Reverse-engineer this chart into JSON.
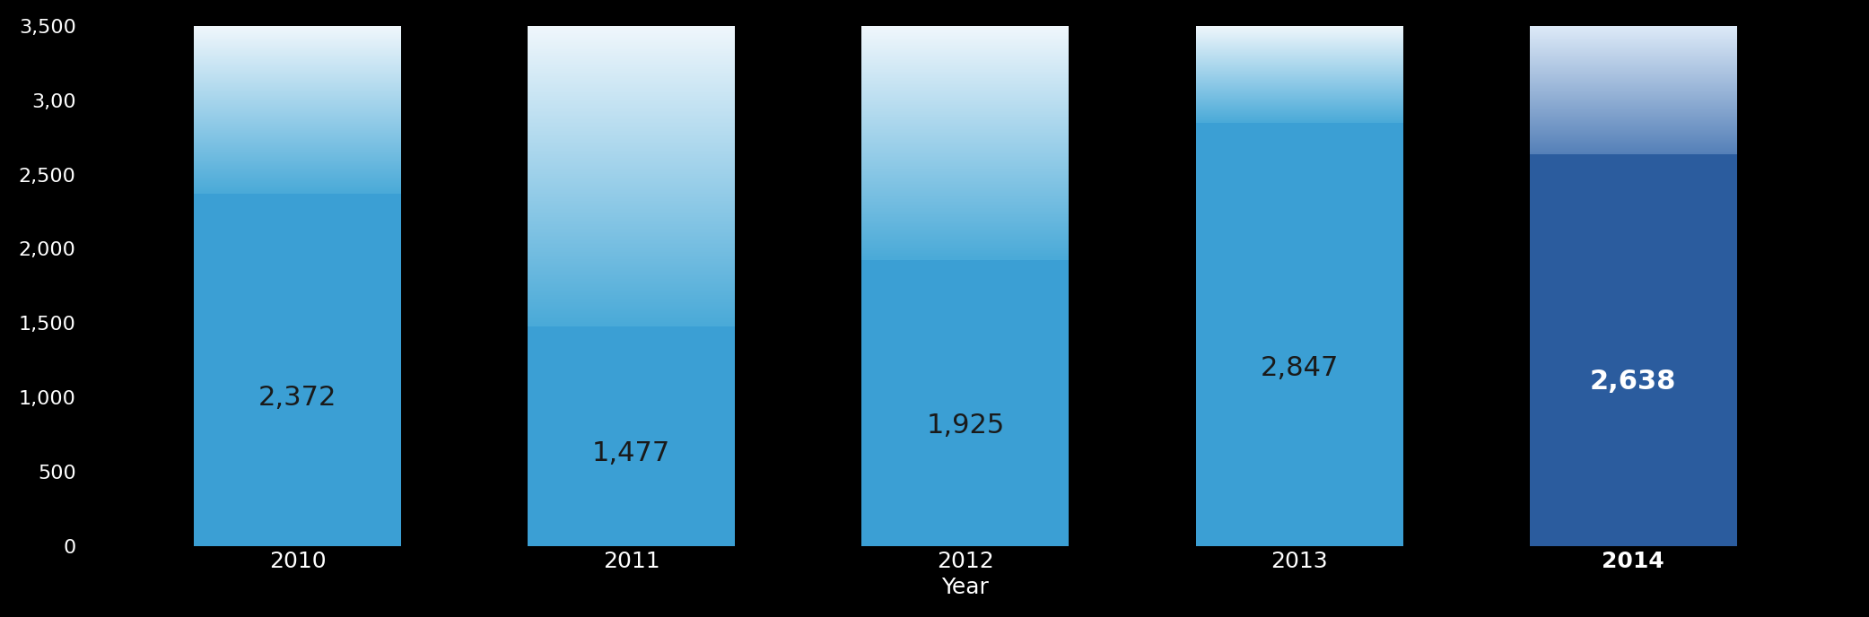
{
  "years": [
    "2010",
    "2011",
    "2012",
    "2013",
    "2014"
  ],
  "values": [
    2372,
    1477,
    1925,
    2847,
    2638
  ],
  "total": 3500,
  "bar_colors_bottom": [
    "#3b9fd4",
    "#3b9fd4",
    "#3b9fd4",
    "#3b9fd4",
    "#2b5c9e"
  ],
  "gradient_bottom_color": [
    "#4aaad8",
    "#4aaad8",
    "#4aaad8",
    "#4aaad8",
    "#5580b8"
  ],
  "gradient_top_color": [
    "#f0f7fc",
    "#f0f7fc",
    "#f0f7fc",
    "#f0f7fc",
    "#ddeaf8"
  ],
  "label_colors": [
    "#1a1a1a",
    "#1a1a1a",
    "#1a1a1a",
    "#1a1a1a",
    "#ffffff"
  ],
  "label_fontweights": [
    "normal",
    "normal",
    "normal",
    "normal",
    "bold"
  ],
  "background_color": "#000000",
  "bar_width": 0.62,
  "ylim": [
    0,
    3500
  ],
  "yticks": [
    0,
    500,
    1000,
    1500,
    2000,
    2500,
    3000,
    3500
  ],
  "xlabel": "Year",
  "figsize": [
    20.83,
    6.88
  ],
  "dpi": 100
}
